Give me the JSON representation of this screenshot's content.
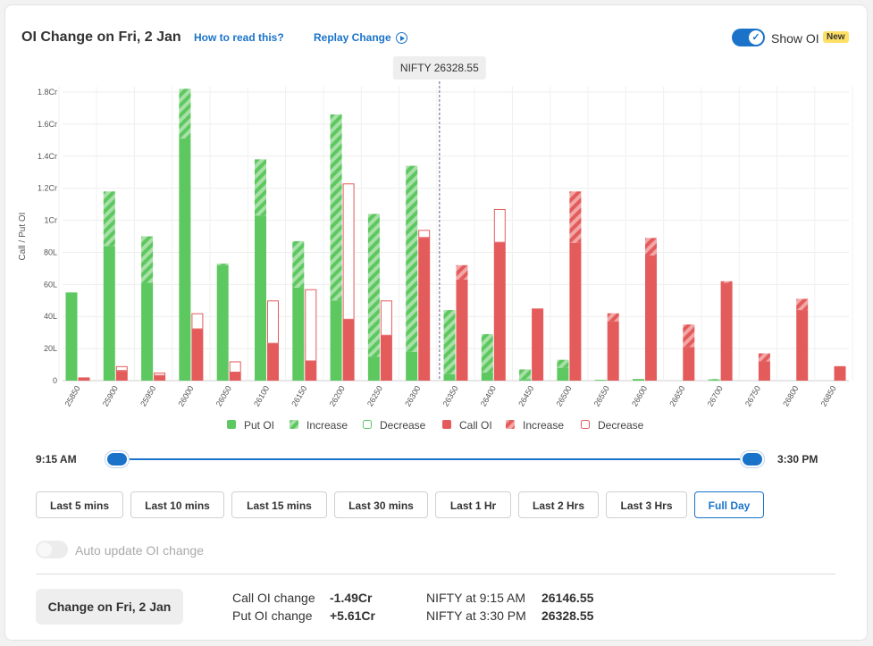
{
  "header": {
    "title": "OI Change on Fri, 2 Jan",
    "how_to_read": "How to read this?",
    "replay": "Replay Change",
    "show_oi_label": "Show OI",
    "new_badge": "New"
  },
  "chart_data": {
    "type": "bar",
    "ylabel": "Call / Put OI",
    "yticks": [
      "0",
      "20L",
      "40L",
      "60L",
      "80L",
      "1Cr",
      "1.2Cr",
      "1.4Cr",
      "1.6Cr",
      "1.8Cr"
    ],
    "ylim_lakh": [
      0,
      180
    ],
    "categories": [
      "25850",
      "25900",
      "25950",
      "26000",
      "26050",
      "26100",
      "26150",
      "26200",
      "26250",
      "26300",
      "26350",
      "26400",
      "26450",
      "26500",
      "26550",
      "26600",
      "26650",
      "26700",
      "26750",
      "26800",
      "26850"
    ],
    "spot_label": "NIFTY 26328.55",
    "spot_value": 26328.55,
    "units": "lakh",
    "put_oi_start": [
      55,
      84,
      61,
      151,
      72,
      103,
      58,
      50,
      15,
      18,
      4,
      5,
      1,
      8,
      0.5,
      1,
      0,
      0.5,
      0,
      0,
      0
    ],
    "put_oi_end": [
      55,
      118,
      90,
      182,
      73,
      138,
      87,
      166,
      104,
      134,
      44,
      29,
      7,
      13,
      0.5,
      1,
      0,
      1,
      0,
      0,
      0
    ],
    "call_oi_start": [
      2,
      9,
      5,
      42,
      12,
      50,
      57,
      123,
      50,
      94,
      63,
      107,
      45,
      86,
      37,
      78,
      21,
      61,
      12,
      44,
      9
    ],
    "call_oi_end": [
      2,
      6,
      3,
      32,
      5,
      23,
      12,
      38,
      28,
      89,
      72,
      86,
      45,
      118,
      42,
      89,
      35,
      62,
      17,
      51,
      9
    ],
    "legend": [
      {
        "label": "Put OI",
        "style": "put-solid"
      },
      {
        "label": "Increase",
        "style": "put-increase"
      },
      {
        "label": "Decrease",
        "style": "put-decrease"
      },
      {
        "label": "Call OI",
        "style": "call-solid"
      },
      {
        "label": "Increase",
        "style": "call-increase"
      },
      {
        "label": "Decrease",
        "style": "call-decrease"
      }
    ],
    "colors": {
      "put": "#5cc85f",
      "put_light": "#a8e0a8",
      "call": "#e45b5b",
      "call_light": "#f2a6a6"
    }
  },
  "time_range": {
    "start": "9:15 AM",
    "end": "3:30 PM"
  },
  "range_buttons": [
    "Last 5 mins",
    "Last 10 mins",
    "Last 15 mins",
    "Last 30 mins",
    "Last 1 Hr",
    "Last 2 Hrs",
    "Last 3 Hrs",
    "Full Day"
  ],
  "active_range": "Full Day",
  "auto_update_label": "Auto update OI change",
  "footer": {
    "change_button": "Change on Fri, 2 Jan",
    "call_oi_label": "Call OI change",
    "call_oi_value": "-1.49Cr",
    "put_oi_label": "Put OI change",
    "put_oi_value": "+5.61Cr",
    "nifty_open_label": "NIFTY at 9:15 AM",
    "nifty_open_value": "26146.55",
    "nifty_close_label": "NIFTY at 3:30 PM",
    "nifty_close_value": "26328.55"
  }
}
